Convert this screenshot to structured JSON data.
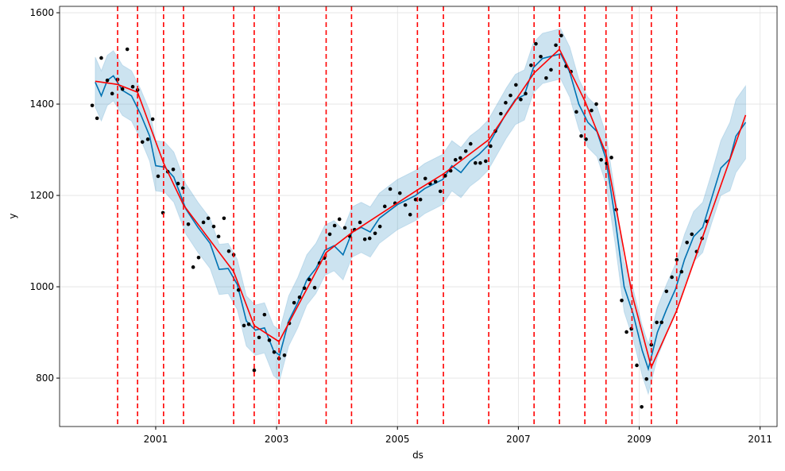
{
  "chart_data": {
    "type": "line",
    "x_label": "ds",
    "y_label": "y",
    "xlim": [
      1999.41,
      2011.28
    ],
    "ylim": [
      694,
      1614
    ],
    "xticks": [
      2001,
      2003,
      2005,
      2007,
      2009,
      2011
    ],
    "yticks": [
      800,
      1000,
      1200,
      1400,
      1600
    ],
    "grid": true,
    "observed": {
      "color": "#000000",
      "x": [
        1999.95,
        2000.03,
        2000.1,
        2000.2,
        2000.28,
        2000.37,
        2000.45,
        2000.53,
        2000.62,
        2000.7,
        2000.78,
        2000.87,
        2000.95,
        2001.04,
        2001.12,
        2001.2,
        2001.29,
        2001.37,
        2001.45,
        2001.54,
        2001.62,
        2001.71,
        2001.79,
        2001.87,
        2001.96,
        2002.04,
        2002.13,
        2002.21,
        2002.29,
        2002.37,
        2002.46,
        2002.54,
        2002.63,
        2002.71,
        2002.8,
        2002.88,
        2002.96,
        2003.04,
        2003.13,
        2003.21,
        2003.29,
        2003.38,
        2003.46,
        2003.54,
        2003.63,
        2003.71,
        2003.79,
        2003.88,
        2003.96,
        2004.04,
        2004.13,
        2004.21,
        2004.29,
        2004.38,
        2004.46,
        2004.54,
        2004.63,
        2004.71,
        2004.79,
        2004.88,
        2004.96,
        2005.04,
        2005.13,
        2005.21,
        2005.3,
        2005.38,
        2005.46,
        2005.54,
        2005.63,
        2005.71,
        2005.79,
        2005.88,
        2005.96,
        2006.04,
        2006.13,
        2006.21,
        2006.29,
        2006.37,
        2006.46,
        2006.54,
        2006.62,
        2006.71,
        2006.79,
        2006.87,
        2006.96,
        2007.04,
        2007.12,
        2007.21,
        2007.29,
        2007.37,
        2007.46,
        2007.54,
        2007.62,
        2007.71,
        2007.79,
        2007.87,
        2007.96,
        2008.04,
        2008.12,
        2008.21,
        2008.29,
        2008.37,
        2008.46,
        2008.54,
        2008.62,
        2008.71,
        2008.79,
        2008.87,
        2008.96,
        2009.04,
        2009.12,
        2009.2,
        2009.29,
        2009.37,
        2009.45,
        2009.54,
        2009.62,
        2009.7,
        2009.79,
        2009.87,
        2009.95,
        2010.04,
        2010.12
      ],
      "values": [
        1397,
        1369,
        1501,
        1452,
        1423,
        1454,
        1433,
        1520,
        1438,
        1431,
        1317,
        1323,
        1367,
        1242,
        1162,
        1252,
        1257,
        1226,
        1216,
        1137,
        1043,
        1064,
        1141,
        1150,
        1132,
        1110,
        1150,
        1078,
        1070,
        993,
        915,
        918,
        817,
        889,
        939,
        883,
        857,
        843,
        850,
        920,
        965,
        977,
        997,
        1016,
        998,
        1052,
        1063,
        1115,
        1134,
        1148,
        1129,
        1111,
        1125,
        1141,
        1104,
        1106,
        1117,
        1132,
        1176,
        1214,
        1183,
        1205,
        1179,
        1158,
        1191,
        1191,
        1237,
        1226,
        1230,
        1209,
        1243,
        1254,
        1278,
        1282,
        1297,
        1313,
        1271,
        1271,
        1275,
        1308,
        1341,
        1379,
        1403,
        1419,
        1442,
        1410,
        1423,
        1485,
        1532,
        1504,
        1457,
        1475,
        1529,
        1550,
        1483,
        1471,
        1383,
        1330,
        1323,
        1386,
        1400,
        1278,
        1270,
        1283,
        1169,
        970,
        901,
        908,
        828,
        737,
        798,
        873,
        922,
        922,
        990,
        1021,
        1059,
        1033,
        1097,
        1115,
        1077,
        1106,
        1143
      ]
    },
    "forecast": {
      "color": "#0072B2",
      "x": [
        2000.0,
        2000.1,
        2000.2,
        2000.3,
        2000.45,
        2000.6,
        2000.75,
        2000.9,
        2001.0,
        2001.15,
        2001.3,
        2001.5,
        2001.7,
        2001.9,
        2002.05,
        2002.2,
        2002.35,
        2002.5,
        2002.65,
        2002.8,
        2002.95,
        2003.05,
        2003.2,
        2003.35,
        2003.5,
        2003.65,
        2003.8,
        2003.95,
        2004.1,
        2004.25,
        2004.4,
        2004.55,
        2004.7,
        2004.85,
        2005.0,
        2005.15,
        2005.3,
        2005.45,
        2005.6,
        2005.75,
        2005.9,
        2006.05,
        2006.2,
        2006.35,
        2006.5,
        2006.65,
        2006.8,
        2006.95,
        2007.1,
        2007.25,
        2007.4,
        2007.55,
        2007.7,
        2007.85,
        2008.0,
        2008.15,
        2008.3,
        2008.45,
        2008.6,
        2008.75,
        2008.9,
        2009.05,
        2009.15,
        2009.3,
        2009.45,
        2009.6,
        2009.75,
        2009.9,
        2010.05,
        2010.2,
        2010.35,
        2010.5,
        2010.6,
        2010.76
      ],
      "yhat": [
        1448,
        1418,
        1452,
        1462,
        1430,
        1418,
        1378,
        1330,
        1265,
        1262,
        1240,
        1170,
        1130,
        1095,
        1038,
        1040,
        1005,
        925,
        905,
        910,
        860,
        850,
        925,
        965,
        1015,
        1040,
        1080,
        1090,
        1070,
        1120,
        1130,
        1120,
        1150,
        1165,
        1180,
        1190,
        1200,
        1215,
        1225,
        1235,
        1265,
        1250,
        1275,
        1290,
        1310,
        1345,
        1380,
        1410,
        1420,
        1480,
        1500,
        1505,
        1510,
        1470,
        1400,
        1360,
        1340,
        1280,
        1150,
        1000,
        940,
        860,
        820,
        900,
        950,
        995,
        1060,
        1110,
        1130,
        1195,
        1260,
        1280,
        1330,
        1360
      ],
      "yhat_lower": [
        1393,
        1363,
        1397,
        1407,
        1375,
        1363,
        1323,
        1275,
        1210,
        1207,
        1185,
        1115,
        1075,
        1040,
        983,
        985,
        950,
        870,
        850,
        855,
        805,
        795,
        870,
        910,
        960,
        985,
        1025,
        1035,
        1015,
        1065,
        1075,
        1065,
        1095,
        1110,
        1125,
        1135,
        1145,
        1160,
        1170,
        1180,
        1210,
        1195,
        1220,
        1235,
        1255,
        1290,
        1325,
        1355,
        1365,
        1425,
        1445,
        1450,
        1455,
        1415,
        1345,
        1305,
        1285,
        1225,
        1095,
        945,
        885,
        805,
        765,
        845,
        895,
        940,
        1005,
        1055,
        1075,
        1140,
        1200,
        1210,
        1250,
        1280
      ],
      "yhat_upper": [
        1503,
        1473,
        1507,
        1517,
        1485,
        1473,
        1433,
        1385,
        1320,
        1317,
        1295,
        1225,
        1185,
        1150,
        1093,
        1095,
        1060,
        980,
        960,
        965,
        915,
        905,
        980,
        1020,
        1070,
        1095,
        1135,
        1145,
        1125,
        1175,
        1185,
        1175,
        1205,
        1220,
        1235,
        1245,
        1255,
        1270,
        1280,
        1290,
        1320,
        1305,
        1330,
        1345,
        1365,
        1400,
        1435,
        1465,
        1475,
        1535,
        1555,
        1560,
        1565,
        1525,
        1455,
        1415,
        1395,
        1335,
        1205,
        1055,
        995,
        915,
        875,
        955,
        1005,
        1050,
        1115,
        1165,
        1185,
        1250,
        1320,
        1360,
        1410,
        1440
      ]
    },
    "trend": {
      "color": "#ff0000",
      "x": [
        2000.0,
        2000.37,
        2000.7,
        2001.13,
        2001.46,
        2002.29,
        2002.63,
        2003.04,
        2003.82,
        2004.24,
        2005.33,
        2005.76,
        2006.51,
        2007.26,
        2007.68,
        2008.1,
        2008.45,
        2008.88,
        2009.2,
        2009.62,
        2010.76
      ],
      "values": [
        1450,
        1443,
        1426,
        1271,
        1179,
        1033,
        915,
        880,
        1075,
        1118,
        1212,
        1247,
        1322,
        1468,
        1520,
        1407,
        1292,
        984,
        824,
        948,
        1376
      ]
    },
    "changepoints": {
      "color": "#ff0000",
      "x": [
        2000.37,
        2000.7,
        2001.13,
        2001.46,
        2002.29,
        2002.63,
        2003.04,
        2003.82,
        2004.24,
        2005.33,
        2005.76,
        2006.51,
        2007.26,
        2007.68,
        2008.1,
        2008.45,
        2008.88,
        2009.2,
        2009.62
      ]
    }
  }
}
